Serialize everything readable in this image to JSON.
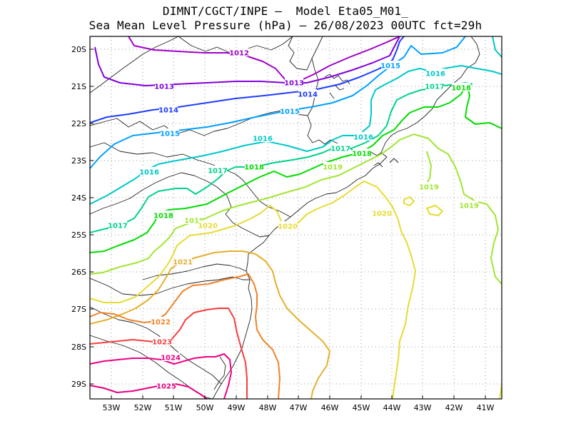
{
  "title_line1": "DIMNT/CGCT/INPE —  Model Eta05_M01_",
  "title_line2": "Sea Mean Level Pressure (hPa) — 26/08/2023 00UTC fct=29h",
  "lat_labels": [
    "20S",
    "21S",
    "22S",
    "23S",
    "24S",
    "25S",
    "26S",
    "27S",
    "28S",
    "29S"
  ],
  "lon_labels": [
    "53W",
    "52W",
    "51W",
    "50W",
    "49W",
    "48W",
    "47W",
    "46W",
    "45W",
    "44W",
    "43W",
    "42W",
    "41W"
  ],
  "contour_colors": {
    "1012": "#a000c8",
    "1013": "#8200dc",
    "1014": "#1e3cff",
    "1015": "#00a0ff",
    "1016": "#00c8c8",
    "1017": "#00d28c",
    "1018": "#00dc00",
    "1019": "#a0e632",
    "1020": "#e6dc32",
    "1021": "#e6af2d",
    "1022": "#f08228",
    "1023": "#fa3c3c",
    "1024": "#f00082",
    "1025": "#e6007e"
  },
  "contour_labels": [
    {
      "text": "1012",
      "level": "1012"
    },
    {
      "text": "1013",
      "level": "1013"
    },
    {
      "text": "1013",
      "level": "1013"
    },
    {
      "text": "1014",
      "level": "1014"
    },
    {
      "text": "1014",
      "level": "1014"
    },
    {
      "text": "1015",
      "level": "1015"
    },
    {
      "text": "1015",
      "level": "1015"
    },
    {
      "text": "1015",
      "level": "1015"
    },
    {
      "text": "1016",
      "level": "1016"
    },
    {
      "text": "1016",
      "level": "1016"
    },
    {
      "text": "1016",
      "level": "1016"
    },
    {
      "text": "1016",
      "level": "1016"
    },
    {
      "text": "1017",
      "level": "1017"
    },
    {
      "text": "1017",
      "level": "1017"
    },
    {
      "text": "1017",
      "level": "1017"
    },
    {
      "text": "1017",
      "level": "1017"
    },
    {
      "text": "1018",
      "level": "1018"
    },
    {
      "text": "1018",
      "level": "1018"
    },
    {
      "text": "1018",
      "level": "1018"
    },
    {
      "text": "1018",
      "level": "1018"
    },
    {
      "text": "1019",
      "level": "1019"
    },
    {
      "text": "1019",
      "level": "1019"
    },
    {
      "text": "1019",
      "level": "1019"
    },
    {
      "text": "1019",
      "level": "1019"
    },
    {
      "text": "1020",
      "level": "1020"
    },
    {
      "text": "1020",
      "level": "1020"
    },
    {
      "text": "1020",
      "level": "1020"
    },
    {
      "text": "1021",
      "level": "1021"
    },
    {
      "text": "1022",
      "level": "1022"
    },
    {
      "text": "1023",
      "level": "1023"
    },
    {
      "text": "1024",
      "level": "1024"
    },
    {
      "text": "1025",
      "level": "1025"
    }
  ]
}
